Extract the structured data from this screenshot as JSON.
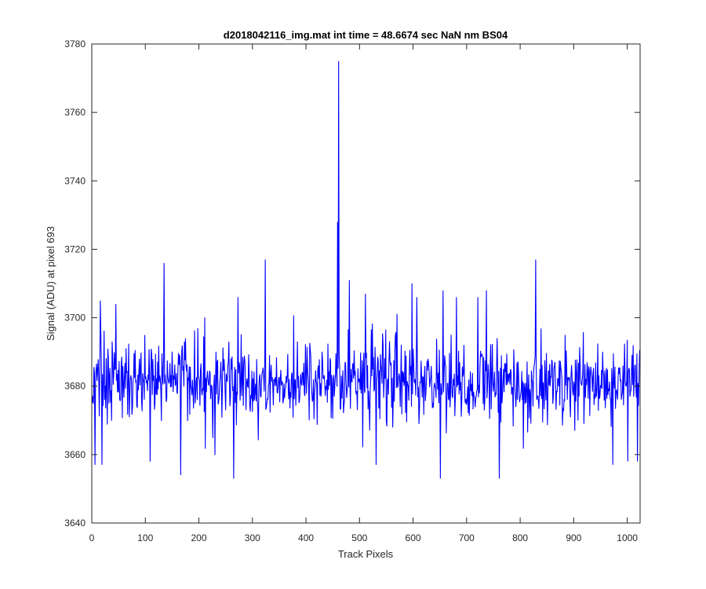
{
  "chart_data": {
    "type": "line",
    "title": "d2018042116_img.mat int time = 48.6674 sec   NaN nm BS04",
    "xlabel": "Track Pixels",
    "ylabel": "Signal (ADU) at pixel 693",
    "xlim": [
      0,
      1024
    ],
    "ylim": [
      3640,
      3780
    ],
    "xticks": [
      0,
      100,
      200,
      300,
      400,
      500,
      600,
      700,
      800,
      900,
      1000
    ],
    "yticks": [
      3640,
      3660,
      3680,
      3700,
      3720,
      3740,
      3760,
      3780
    ],
    "grid": false,
    "legend": "none",
    "series": [
      {
        "color": "#0000ff",
        "baseline": 3681,
        "noise_amplitude": 6,
        "n_points": 1024,
        "spikes": [
          {
            "x": 458,
            "y": 3728
          },
          {
            "x": 460,
            "y": 3775
          },
          {
            "x": 134,
            "y": 3716
          },
          {
            "x": 323,
            "y": 3717
          },
          {
            "x": 828,
            "y": 3717
          },
          {
            "x": 15,
            "y": 3705
          },
          {
            "x": 44,
            "y": 3704
          },
          {
            "x": 272,
            "y": 3706
          },
          {
            "x": 480,
            "y": 3711
          },
          {
            "x": 510,
            "y": 3707
          },
          {
            "x": 597,
            "y": 3710
          },
          {
            "x": 606,
            "y": 3706
          },
          {
            "x": 655,
            "y": 3708
          },
          {
            "x": 680,
            "y": 3706
          },
          {
            "x": 720,
            "y": 3706
          },
          {
            "x": 736,
            "y": 3708
          },
          {
            "x": 5,
            "y": 3657
          },
          {
            "x": 18,
            "y": 3657
          },
          {
            "x": 108,
            "y": 3658
          },
          {
            "x": 165,
            "y": 3654
          },
          {
            "x": 264,
            "y": 3653
          },
          {
            "x": 530,
            "y": 3657
          },
          {
            "x": 650,
            "y": 3653
          },
          {
            "x": 760,
            "y": 3653
          },
          {
            "x": 972,
            "y": 3657
          },
          {
            "x": 1000,
            "y": 3658
          },
          {
            "x": 1018,
            "y": 3658
          }
        ]
      }
    ]
  }
}
